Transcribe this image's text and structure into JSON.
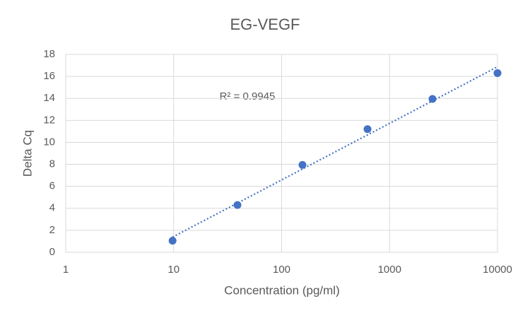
{
  "chart_data": {
    "type": "scatter",
    "title": "EG-VEGF",
    "x_label": "Concentration (pg/ml)",
    "y_label": "Delta Cq",
    "x": [
      9.77,
      39,
      156,
      625,
      2500,
      10000
    ],
    "series": [
      {
        "color": "#4472c4",
        "values": [
          1.05,
          4.3,
          7.95,
          11.2,
          13.95,
          16.3
        ]
      }
    ],
    "x_log": true,
    "xlim": [
      1,
      10000
    ],
    "xticks": [
      1,
      10,
      100,
      1000,
      10000
    ],
    "ylim": [
      0,
      18
    ],
    "yticks": [
      0,
      2,
      4,
      6,
      8,
      10,
      12,
      14,
      16,
      18
    ],
    "grid": true,
    "trendline": "logarithmic",
    "annotation": "R² = 0.9945"
  }
}
